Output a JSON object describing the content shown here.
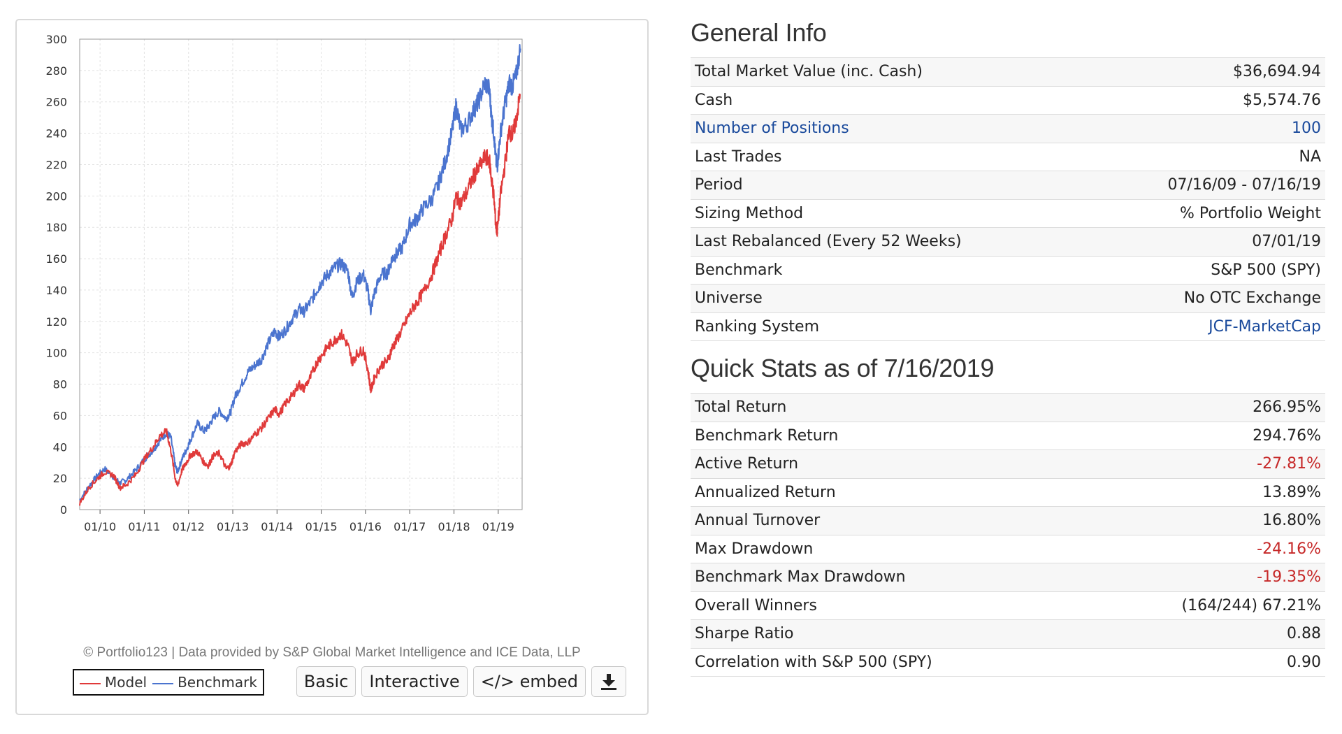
{
  "chart_data": {
    "type": "line",
    "x": [
      "01/10",
      "01/11",
      "01/12",
      "01/13",
      "01/14",
      "01/15",
      "01/16",
      "01/17",
      "01/18",
      "01/19"
    ],
    "xlabel": "",
    "ylabel": "",
    "ylim": [
      0,
      300
    ],
    "yticks": [
      "0",
      "20",
      "40",
      "60",
      "80",
      "100",
      "120",
      "140",
      "160",
      "180",
      "200",
      "220",
      "240",
      "260",
      "280",
      "300"
    ],
    "grid": true,
    "legend_position": "bottom-left",
    "series": [
      {
        "name": "Model",
        "color": "#e03a3a",
        "points": [
          [
            2009.54,
            4
          ],
          [
            2009.75,
            14
          ],
          [
            2009.95,
            20
          ],
          [
            2010.1,
            24
          ],
          [
            2010.3,
            22
          ],
          [
            2010.45,
            14
          ],
          [
            2010.6,
            16
          ],
          [
            2010.8,
            22
          ],
          [
            2011.0,
            32
          ],
          [
            2011.2,
            40
          ],
          [
            2011.35,
            47
          ],
          [
            2011.5,
            50
          ],
          [
            2011.6,
            38
          ],
          [
            2011.7,
            20
          ],
          [
            2011.75,
            15
          ],
          [
            2011.85,
            25
          ],
          [
            2011.95,
            30
          ],
          [
            2012.05,
            35
          ],
          [
            2012.2,
            37
          ],
          [
            2012.35,
            30
          ],
          [
            2012.45,
            28
          ],
          [
            2012.55,
            34
          ],
          [
            2012.7,
            36
          ],
          [
            2012.85,
            26
          ],
          [
            2012.95,
            28
          ],
          [
            2013.05,
            37
          ],
          [
            2013.2,
            42
          ],
          [
            2013.35,
            43
          ],
          [
            2013.5,
            48
          ],
          [
            2013.65,
            52
          ],
          [
            2013.8,
            58
          ],
          [
            2013.95,
            64
          ],
          [
            2014.05,
            61
          ],
          [
            2014.2,
            68
          ],
          [
            2014.35,
            73
          ],
          [
            2014.5,
            80
          ],
          [
            2014.6,
            77
          ],
          [
            2014.75,
            84
          ],
          [
            2014.9,
            94
          ],
          [
            2015.0,
            98
          ],
          [
            2015.15,
            104
          ],
          [
            2015.3,
            108
          ],
          [
            2015.45,
            112
          ],
          [
            2015.6,
            105
          ],
          [
            2015.7,
            94
          ],
          [
            2015.8,
            99
          ],
          [
            2015.95,
            102
          ],
          [
            2016.05,
            90
          ],
          [
            2016.12,
            76
          ],
          [
            2016.2,
            84
          ],
          [
            2016.35,
            92
          ],
          [
            2016.5,
            95
          ],
          [
            2016.6,
            103
          ],
          [
            2016.7,
            108
          ],
          [
            2016.85,
            116
          ],
          [
            2017.0,
            125
          ],
          [
            2017.15,
            132
          ],
          [
            2017.3,
            138
          ],
          [
            2017.5,
            150
          ],
          [
            2017.65,
            162
          ],
          [
            2017.8,
            174
          ],
          [
            2017.95,
            185
          ],
          [
            2018.05,
            200
          ],
          [
            2018.15,
            195
          ],
          [
            2018.3,
            203
          ],
          [
            2018.45,
            213
          ],
          [
            2018.55,
            217
          ],
          [
            2018.7,
            225
          ],
          [
            2018.8,
            223
          ],
          [
            2018.85,
            210
          ],
          [
            2018.9,
            200
          ],
          [
            2018.95,
            180
          ],
          [
            2018.98,
            178
          ],
          [
            2019.05,
            200
          ],
          [
            2019.15,
            220
          ],
          [
            2019.25,
            242
          ],
          [
            2019.32,
            238
          ],
          [
            2019.4,
            248
          ],
          [
            2019.5,
            265
          ]
        ]
      },
      {
        "name": "Benchmark",
        "color": "#4b74cf",
        "points": [
          [
            2009.54,
            6
          ],
          [
            2009.75,
            15
          ],
          [
            2009.95,
            22
          ],
          [
            2010.1,
            26
          ],
          [
            2010.3,
            21
          ],
          [
            2010.45,
            17
          ],
          [
            2010.6,
            19
          ],
          [
            2010.8,
            25
          ],
          [
            2011.0,
            32
          ],
          [
            2011.2,
            38
          ],
          [
            2011.35,
            44
          ],
          [
            2011.5,
            49
          ],
          [
            2011.6,
            46
          ],
          [
            2011.7,
            28
          ],
          [
            2011.75,
            24
          ],
          [
            2011.85,
            32
          ],
          [
            2011.95,
            38
          ],
          [
            2012.05,
            45
          ],
          [
            2012.2,
            55
          ],
          [
            2012.35,
            50
          ],
          [
            2012.45,
            53
          ],
          [
            2012.55,
            58
          ],
          [
            2012.7,
            63
          ],
          [
            2012.85,
            58
          ],
          [
            2012.95,
            62
          ],
          [
            2013.05,
            72
          ],
          [
            2013.2,
            80
          ],
          [
            2013.35,
            88
          ],
          [
            2013.5,
            92
          ],
          [
            2013.65,
            96
          ],
          [
            2013.8,
            106
          ],
          [
            2013.95,
            114
          ],
          [
            2014.05,
            110
          ],
          [
            2014.2,
            115
          ],
          [
            2014.35,
            122
          ],
          [
            2014.5,
            128
          ],
          [
            2014.6,
            126
          ],
          [
            2014.75,
            132
          ],
          [
            2014.9,
            140
          ],
          [
            2015.0,
            145
          ],
          [
            2015.15,
            150
          ],
          [
            2015.3,
            154
          ],
          [
            2015.45,
            157
          ],
          [
            2015.6,
            152
          ],
          [
            2015.7,
            135
          ],
          [
            2015.8,
            145
          ],
          [
            2015.95,
            150
          ],
          [
            2016.05,
            140
          ],
          [
            2016.12,
            127
          ],
          [
            2016.2,
            138
          ],
          [
            2016.35,
            150
          ],
          [
            2016.5,
            151
          ],
          [
            2016.6,
            160
          ],
          [
            2016.7,
            163
          ],
          [
            2016.85,
            168
          ],
          [
            2017.0,
            182
          ],
          [
            2017.15,
            185
          ],
          [
            2017.3,
            192
          ],
          [
            2017.5,
            198
          ],
          [
            2017.65,
            208
          ],
          [
            2017.8,
            222
          ],
          [
            2017.95,
            240
          ],
          [
            2018.05,
            258
          ],
          [
            2018.15,
            242
          ],
          [
            2018.3,
            246
          ],
          [
            2018.45,
            255
          ],
          [
            2018.55,
            260
          ],
          [
            2018.7,
            272
          ],
          [
            2018.8,
            268
          ],
          [
            2018.85,
            250
          ],
          [
            2018.9,
            240
          ],
          [
            2018.95,
            222
          ],
          [
            2018.98,
            220
          ],
          [
            2019.05,
            240
          ],
          [
            2019.15,
            258
          ],
          [
            2019.25,
            272
          ],
          [
            2019.32,
            270
          ],
          [
            2019.4,
            276
          ],
          [
            2019.5,
            294
          ]
        ]
      }
    ]
  },
  "chart_credits": "© Portfolio123 | Data provided by S&P Global Market Intelligence and ICE Data, LLP",
  "legend": {
    "model_label": "Model",
    "benchmark_label": "Benchmark"
  },
  "toolbar": {
    "basic_label": "Basic",
    "interactive_label": "Interactive",
    "embed_label": "</> embed",
    "download_icon": "download-icon"
  },
  "general_info": {
    "title": "General Info",
    "rows": [
      {
        "label": "Total Market Value (inc. Cash)",
        "value": "$36,694.94"
      },
      {
        "label": "Cash",
        "value": "$5,574.76"
      },
      {
        "label": "Number of Positions",
        "value": "100",
        "link": true
      },
      {
        "label": "Last Trades",
        "value": "NA"
      },
      {
        "label": "Period",
        "value": "07/16/09 - 07/16/19"
      },
      {
        "label": "Sizing Method",
        "value": "% Portfolio Weight"
      },
      {
        "label": "Last Rebalanced (Every 52 Weeks)",
        "value": "07/01/19"
      },
      {
        "label": "Benchmark",
        "value": "S&P 500 (SPY)"
      },
      {
        "label": "Universe",
        "value": "No OTC Exchange"
      },
      {
        "label": "Ranking System",
        "value": "JCF-MarketCap",
        "value_link": true
      }
    ]
  },
  "quick_stats": {
    "title": "Quick Stats as of 7/16/2019",
    "rows": [
      {
        "label": "Total Return",
        "value": "266.95%"
      },
      {
        "label": "Benchmark Return",
        "value": "294.76%"
      },
      {
        "label": "Active Return",
        "value": "-27.81%",
        "negative": true
      },
      {
        "label": "Annualized Return",
        "value": "13.89%"
      },
      {
        "label": "Annual Turnover",
        "value": "16.80%"
      },
      {
        "label": "Max Drawdown",
        "value": "-24.16%",
        "negative": true
      },
      {
        "label": "Benchmark Max Drawdown",
        "value": "-19.35%",
        "negative": true
      },
      {
        "label": "Overall Winners",
        "value": "(164/244) 67.21%"
      },
      {
        "label": "Sharpe Ratio",
        "value": "0.88"
      },
      {
        "label": "Correlation with S&P 500 (SPY)",
        "value": "0.90"
      }
    ]
  },
  "colors": {
    "model": "#e03a3a",
    "benchmark": "#4b74cf",
    "link": "#1a4a9c",
    "negative": "#c62828"
  }
}
